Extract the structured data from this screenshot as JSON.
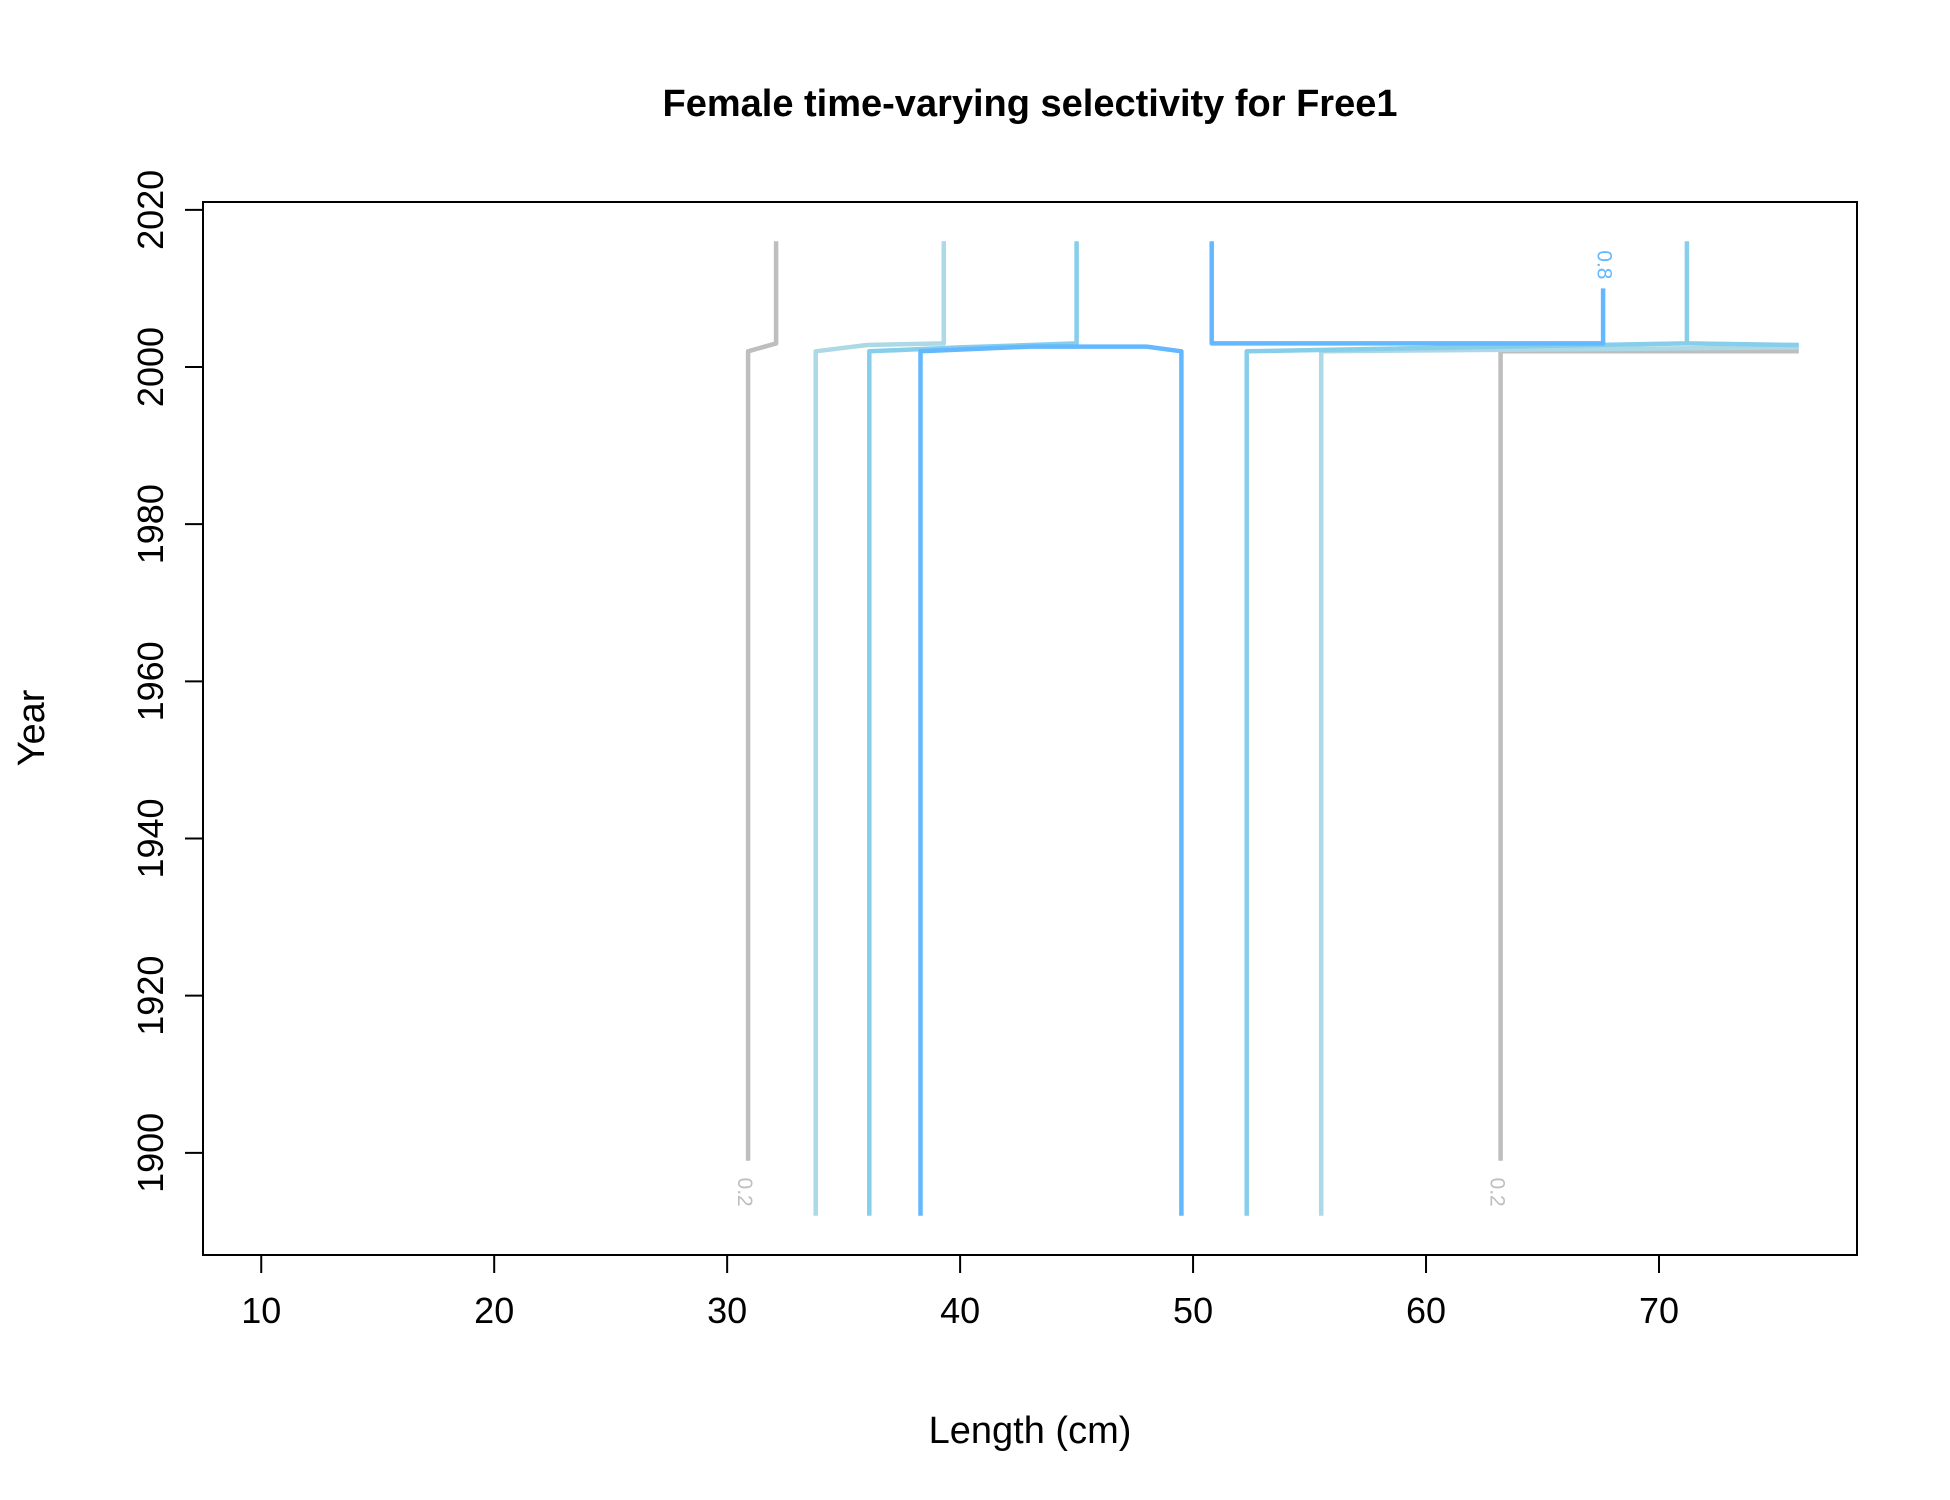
{
  "chart_data": {
    "type": "line",
    "title": "Female time-varying selectivity for Free1",
    "xlabel": "Length (cm)",
    "ylabel": "Year",
    "xlim": [
      7.5,
      78.5
    ],
    "ylim": [
      1887,
      2021
    ],
    "x_ticks": [
      "10",
      "20",
      "30",
      "40",
      "50",
      "60",
      "70"
    ],
    "y_ticks": [
      "1900",
      "1920",
      "1940",
      "1960",
      "1980",
      "2000",
      "2020"
    ],
    "grid": false,
    "legend": "none",
    "series": [
      {
        "level": "0.2",
        "color": "#bebebe",
        "lines": [
          [
            [
              30.9,
              1899
            ],
            [
              30.9,
              2002
            ],
            [
              32.1,
              2003
            ],
            [
              32.1,
              2016
            ]
          ],
          [
            [
              63.2,
              1899
            ],
            [
              63.2,
              2002
            ],
            [
              76,
              2002
            ]
          ]
        ],
        "labels": [
          {
            "text": "0.2",
            "x": 30.7,
            "y": 1895
          },
          {
            "text": "0.2",
            "x": 63.0,
            "y": 1895
          }
        ]
      },
      {
        "level": "0.4",
        "color": "#add8e6",
        "lines": [
          [
            [
              33.8,
              1892
            ],
            [
              33.8,
              2002
            ],
            [
              36,
              2002.8
            ],
            [
              39.3,
              2003
            ],
            [
              39.3,
              2016
            ]
          ],
          [
            [
              55.5,
              1892
            ],
            [
              55.5,
              2002
            ],
            [
              76,
              2002.5
            ]
          ]
        ],
        "labels": []
      },
      {
        "level": "0.6",
        "color": "#87ceeb",
        "lines": [
          [
            [
              36.1,
              1892
            ],
            [
              36.1,
              2002
            ],
            [
              40,
              2002.5
            ],
            [
              45,
              2003
            ],
            [
              45,
              2016
            ]
          ],
          [
            [
              52.3,
              1892
            ],
            [
              52.3,
              2002
            ],
            [
              56,
              2002.2
            ],
            [
              71.2,
              2003
            ],
            [
              71.2,
              2016
            ]
          ],
          [
            [
              71.2,
              2003
            ],
            [
              76,
              2002.8
            ]
          ]
        ],
        "labels": []
      },
      {
        "level": "0.8",
        "color": "#63b8ff",
        "lines": [
          [
            [
              38.3,
              1892
            ],
            [
              38.3,
              2002
            ],
            [
              43,
              2002.6
            ],
            [
              48,
              2002.6
            ],
            [
              49.5,
              2002
            ],
            [
              49.5,
              1892
            ]
          ],
          [
            [
              50.8,
              2016
            ],
            [
              50.8,
              2003
            ],
            [
              67.6,
              2003
            ],
            [
              67.6,
              2010
            ]
          ]
        ],
        "labels": [
          {
            "text": "0.8",
            "x": 67.6,
            "y": 2013
          }
        ]
      }
    ]
  }
}
